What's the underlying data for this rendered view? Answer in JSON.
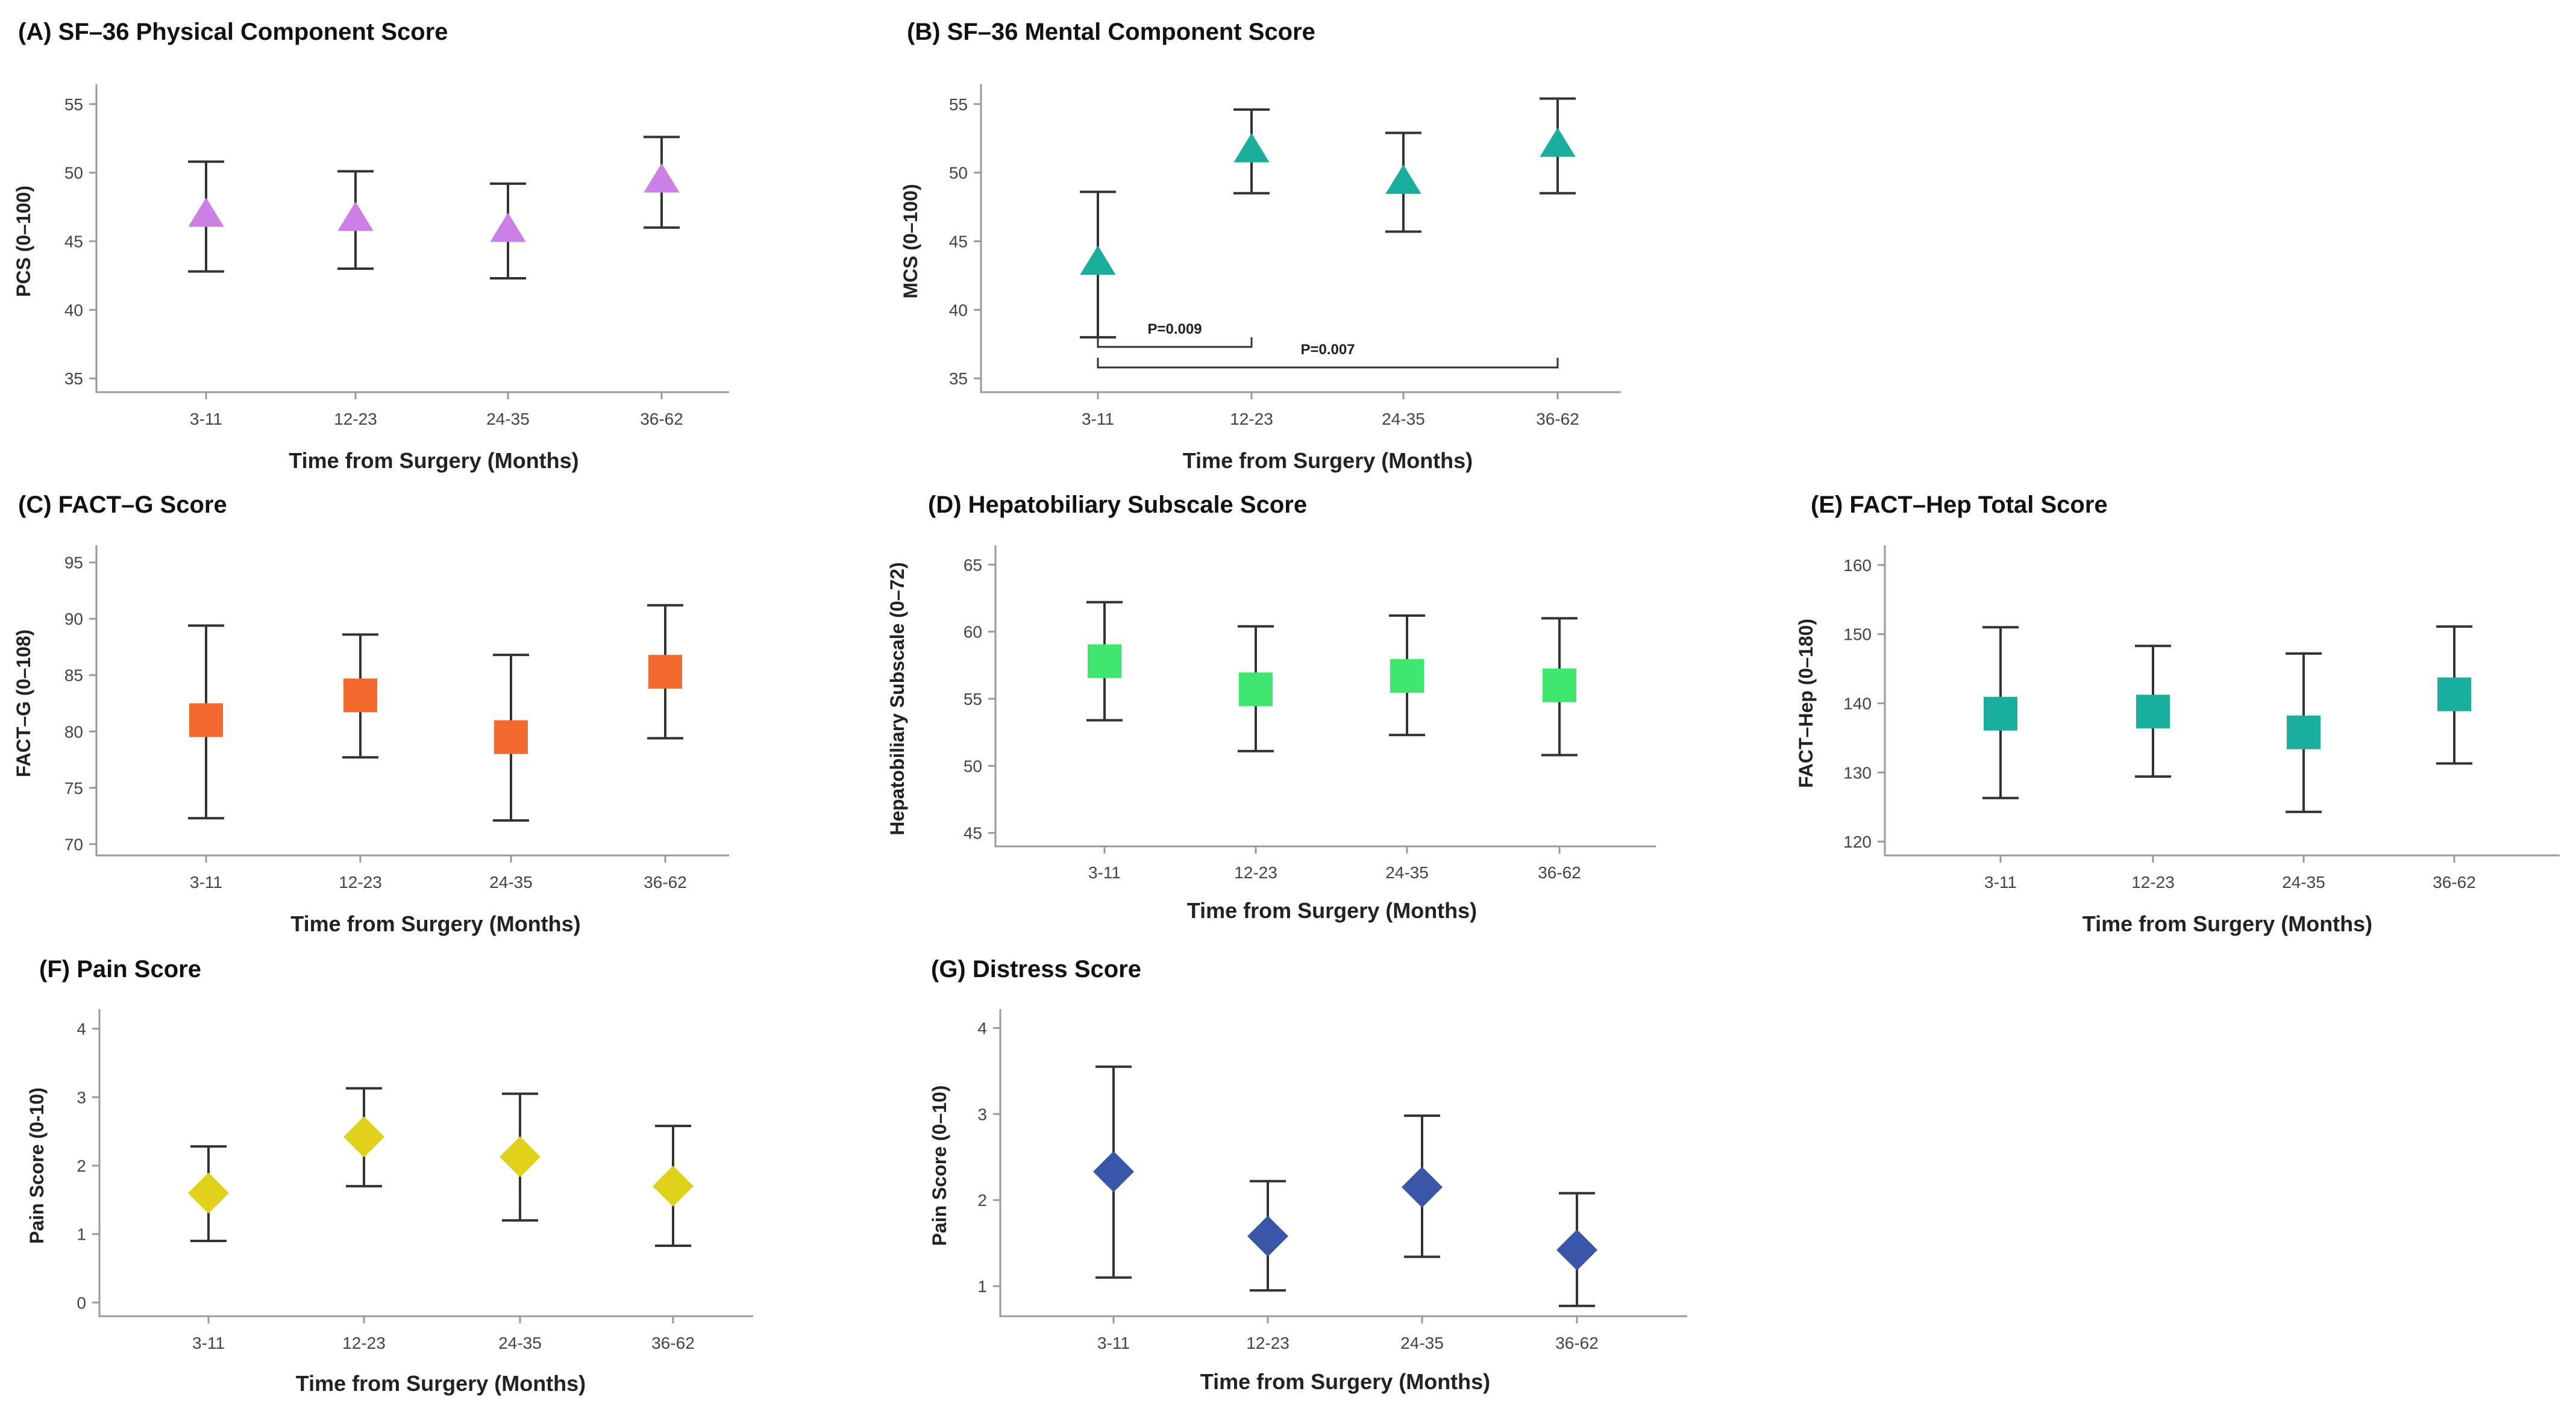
{
  "x_categories": [
    "3-11",
    "12-23",
    "24-35",
    "36-62"
  ],
  "xlabel": "Time from Surgery (Months)",
  "chart_data": [
    {
      "id": "A",
      "type": "scatter",
      "marker": "triangle",
      "color": "#cc80e6",
      "title": "(A) SF–36 Physical Component Score",
      "xlabel": "Time from Surgery (Months)",
      "ylabel": "PCS (0–100)",
      "ylim": [
        34,
        56
      ],
      "yticks": [
        35,
        40,
        45,
        50,
        55
      ],
      "categories": [
        "3-11",
        "12-23",
        "24-35",
        "36-62"
      ],
      "values": [
        47.0,
        46.7,
        45.9,
        49.5
      ],
      "ci_low": [
        42.8,
        43.0,
        42.3,
        46.0
      ],
      "ci_high": [
        50.8,
        50.1,
        49.2,
        52.6
      ],
      "annotations": []
    },
    {
      "id": "B",
      "type": "scatter",
      "marker": "triangle",
      "color": "#1aaf9c",
      "title": "(B) SF–36 Mental Component Score",
      "xlabel": "Time from Surgery (Months)",
      "ylabel": "MCS (0–100)",
      "ylim": [
        34,
        56
      ],
      "yticks": [
        35,
        40,
        45,
        50,
        55
      ],
      "categories": [
        "3-11",
        "12-23",
        "24-35",
        "36-62"
      ],
      "values": [
        43.5,
        51.7,
        49.4,
        52.1
      ],
      "ci_low": [
        38.0,
        48.5,
        45.7,
        48.5
      ],
      "ci_high": [
        48.6,
        54.6,
        52.9,
        55.4
      ],
      "annotations": [
        {
          "text": "P=0.009",
          "from": 0,
          "to": 1,
          "level": 37.3
        },
        {
          "text": "P=0.007",
          "from": 0,
          "to": 3,
          "level": 35.8
        }
      ]
    },
    {
      "id": "C",
      "type": "scatter",
      "marker": "square",
      "color": "#f26a2e",
      "title": "(C) FACT–G Score",
      "xlabel": "Time from Surgery (Months)",
      "ylabel": "FACT–G (0–108)",
      "ylim": [
        69,
        96
      ],
      "yticks": [
        70,
        75,
        80,
        85,
        90,
        95
      ],
      "categories": [
        "3-11",
        "12-23",
        "24-35",
        "36-62"
      ],
      "values": [
        81.0,
        83.2,
        79.5,
        85.3
      ],
      "ci_low": [
        72.3,
        77.7,
        72.1,
        79.4
      ],
      "ci_high": [
        89.4,
        88.6,
        86.8,
        91.2
      ],
      "annotations": []
    },
    {
      "id": "D",
      "type": "scatter",
      "marker": "square",
      "color": "#3ee66e",
      "title": "(D) Hepatobiliary Subscale Score",
      "xlabel": "Time from Surgery (Months)",
      "ylabel": "Hepatobiliary Subscale (0–72)",
      "ylim": [
        44,
        66
      ],
      "yticks": [
        45,
        50,
        55,
        60,
        65
      ],
      "categories": [
        "3-11",
        "12-23",
        "24-35",
        "36-62"
      ],
      "values": [
        57.8,
        55.7,
        56.7,
        56.0
      ],
      "ci_low": [
        53.4,
        51.1,
        52.3,
        50.8
      ],
      "ci_high": [
        62.2,
        60.4,
        61.2,
        61.0
      ],
      "annotations": []
    },
    {
      "id": "E",
      "type": "scatter",
      "marker": "square",
      "color": "#1aaf9c",
      "title": "(E) FACT–Hep Total Score",
      "xlabel": "Time from Surgery (Months)",
      "ylabel": "FACT–Hep (0–180)",
      "ylim": [
        118,
        162
      ],
      "yticks": [
        120,
        130,
        140,
        150,
        160
      ],
      "categories": [
        "3-11",
        "12-23",
        "24-35",
        "36-62"
      ],
      "values": [
        138.5,
        138.8,
        135.8,
        141.3
      ],
      "ci_low": [
        126.3,
        129.4,
        124.3,
        131.3
      ],
      "ci_high": [
        151.0,
        148.3,
        147.2,
        151.1
      ],
      "annotations": []
    },
    {
      "id": "F",
      "type": "scatter",
      "marker": "diamond",
      "color": "#e0d21a",
      "title": "(F) Pain Score",
      "xlabel": "Time from Surgery (Months)",
      "ylabel": "Pain Score (0-10)",
      "ylim": [
        -0.2,
        4.2
      ],
      "yticks": [
        0,
        1,
        2,
        3,
        4
      ],
      "categories": [
        "3-11",
        "12-23",
        "24-35",
        "36-62"
      ],
      "values": [
        1.6,
        2.42,
        2.13,
        1.7
      ],
      "ci_low": [
        0.9,
        1.7,
        1.2,
        0.83
      ],
      "ci_high": [
        2.28,
        3.13,
        3.05,
        2.58
      ],
      "annotations": []
    },
    {
      "id": "G",
      "type": "scatter",
      "marker": "diamond",
      "color": "#3a56a8",
      "title": "(G) Distress Score",
      "xlabel": "Time from Surgery (Months)",
      "ylabel": "Pain Score (0–10)",
      "ylim": [
        0.65,
        4.15
      ],
      "yticks": [
        1,
        2,
        3,
        4
      ],
      "categories": [
        "3-11",
        "12-23",
        "24-35",
        "36-62"
      ],
      "values": [
        2.33,
        1.58,
        2.15,
        1.42
      ],
      "ci_low": [
        1.1,
        0.95,
        1.34,
        0.77
      ],
      "ci_high": [
        3.55,
        2.22,
        2.98,
        2.08
      ],
      "annotations": []
    }
  ]
}
